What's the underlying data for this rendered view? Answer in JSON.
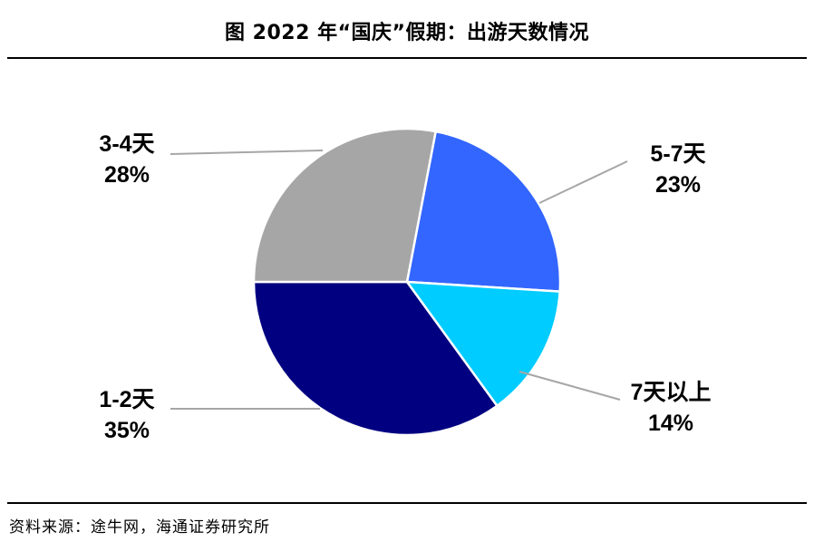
{
  "header": {
    "title": "图  2022 年“国庆”假期：出游天数情况"
  },
  "footer": {
    "source": "资料来源：途牛网，海通证券研究所"
  },
  "chart_data": {
    "type": "pie",
    "title": "图  2022 年“国庆”假期：出游天数情况",
    "slices": [
      {
        "label": "5-7天",
        "value": 23,
        "display": "23%",
        "color": "#3366FF"
      },
      {
        "label": "7天以上",
        "value": 14,
        "display": "14%",
        "color": "#00CCFF"
      },
      {
        "label": "1-2天",
        "value": 35,
        "display": "35%",
        "color": "#000080"
      },
      {
        "label": "3-4天",
        "value": 28,
        "display": "28%",
        "color": "#A6A6A6"
      }
    ],
    "legend": "none",
    "leader_line_color": "#A6A6A6"
  }
}
